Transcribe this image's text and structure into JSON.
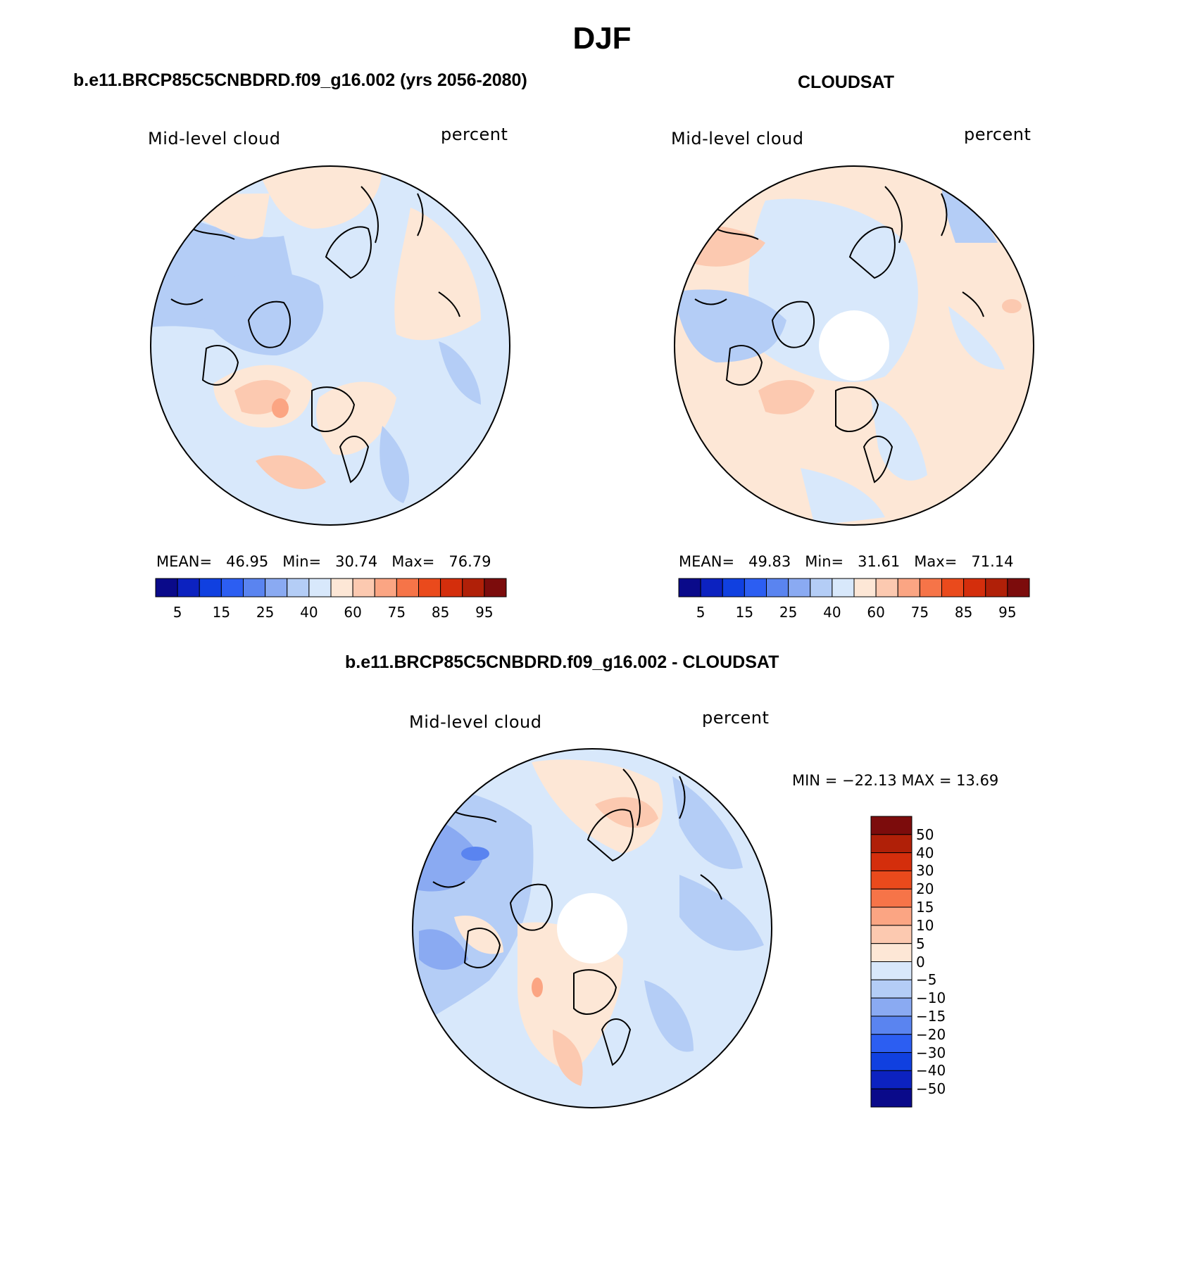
{
  "figure": {
    "title": "DJF"
  },
  "panels": [
    {
      "id": "model",
      "header": "b.e11.BRCP85C5CNBDRD.f09_g16.002 (yrs 2056-2080)",
      "variable": "Mid-level cloud",
      "units": "percent",
      "stats": {
        "mean_label": "MEAN=",
        "mean": "46.95",
        "min_label": "Min=",
        "min": "30.74",
        "max_label": "Max=",
        "max": "76.79"
      }
    },
    {
      "id": "obs",
      "header": "CLOUDSAT",
      "variable": "Mid-level cloud",
      "units": "percent",
      "stats": {
        "mean_label": "MEAN=",
        "mean": "49.83",
        "min_label": "Min=",
        "min": "31.61",
        "max_label": "Max=",
        "max": "71.14"
      }
    },
    {
      "id": "diff",
      "header": "b.e11.BRCP85C5CNBDRD.f09_g16.002 - CLOUDSAT",
      "variable": "Mid-level cloud",
      "units": "percent",
      "stats_text": "MIN = −22.13 MAX =  13.69"
    }
  ],
  "chart_data": [
    {
      "type": "heatmap",
      "projection": "north-polar-stereographic",
      "title": "Mid-level cloud",
      "units": "percent",
      "levels": [
        5,
        10,
        15,
        20,
        25,
        30,
        40,
        50,
        60,
        70,
        75,
        80,
        85,
        90,
        95
      ],
      "level_labels": [
        "5",
        "15",
        "25",
        "40",
        "60",
        "75",
        "85",
        "95"
      ],
      "colors": [
        "#0a0a8a",
        "#0c22c0",
        "#1040e0",
        "#2c5ef2",
        "#5a84f0",
        "#8aaaf2",
        "#b4cdf6",
        "#d8e8fb",
        "#fde7d6",
        "#fcc9b0",
        "#fba583",
        "#f67448",
        "#ea4a1c",
        "#d42e0c",
        "#b02008",
        "#7c0c0c"
      ],
      "mean": 46.95,
      "min": 30.74,
      "max": 76.79
    },
    {
      "type": "heatmap",
      "projection": "north-polar-stereographic",
      "title": "Mid-level cloud",
      "units": "percent",
      "levels": [
        5,
        10,
        15,
        20,
        25,
        30,
        40,
        50,
        60,
        70,
        75,
        80,
        85,
        90,
        95
      ],
      "level_labels": [
        "5",
        "15",
        "25",
        "40",
        "60",
        "75",
        "85",
        "95"
      ],
      "colors": [
        "#0a0a8a",
        "#0c22c0",
        "#1040e0",
        "#2c5ef2",
        "#5a84f0",
        "#8aaaf2",
        "#b4cdf6",
        "#d8e8fb",
        "#fde7d6",
        "#fcc9b0",
        "#fba583",
        "#f67448",
        "#ea4a1c",
        "#d42e0c",
        "#b02008",
        "#7c0c0c"
      ],
      "mean": 49.83,
      "min": 31.61,
      "max": 71.14
    },
    {
      "type": "heatmap",
      "projection": "north-polar-stereographic",
      "title": "Mid-level cloud",
      "units": "percent",
      "levels": [
        -50,
        -40,
        -30,
        -20,
        -15,
        -10,
        -5,
        0,
        5,
        10,
        15,
        20,
        30,
        40,
        50
      ],
      "level_labels": [
        "50",
        "40",
        "30",
        "20",
        "15",
        "10",
        "5",
        "0",
        "−5",
        "−10",
        "−15",
        "−20",
        "−30",
        "−40",
        "−50"
      ],
      "colors": [
        "#0a0a8a",
        "#0c22c0",
        "#1040e0",
        "#2c5ef2",
        "#5a84f0",
        "#8aaaf2",
        "#b4cdf6",
        "#d8e8fb",
        "#fde7d6",
        "#fcc9b0",
        "#fba583",
        "#f67448",
        "#ea4a1c",
        "#d42e0c",
        "#b02008",
        "#7c0c0c"
      ],
      "min": -22.13,
      "max": 13.69
    }
  ]
}
